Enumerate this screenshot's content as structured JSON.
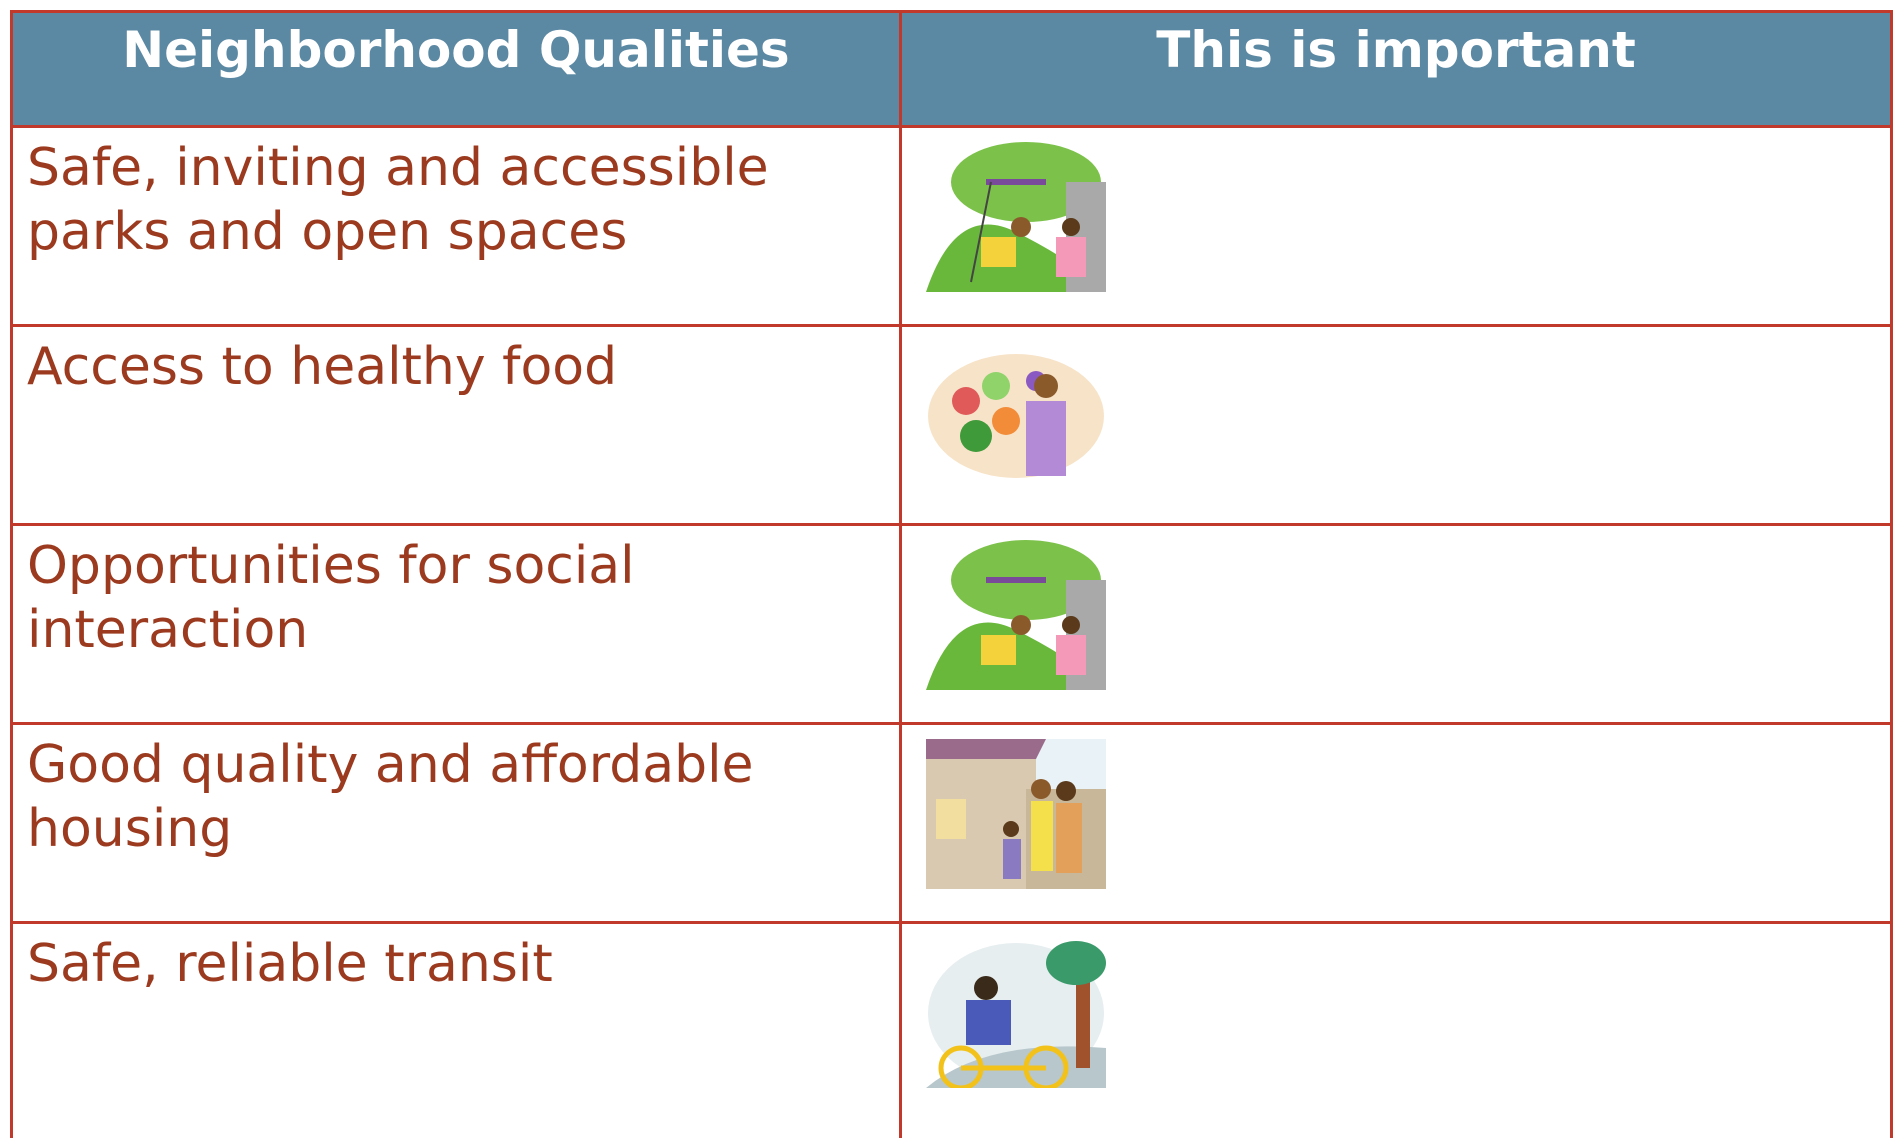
{
  "table": {
    "header": [
      "Neighborhood Qualities",
      "This is important"
    ],
    "rows": [
      [
        "Safe, inviting and accessible parks and open spaces"
      ],
      [
        "Access to healthy food"
      ],
      [
        "Opportunities for social interaction"
      ],
      [
        "Good quality and affordable housing"
      ],
      [
        "Safe, reliable transit"
      ]
    ]
  }
}
